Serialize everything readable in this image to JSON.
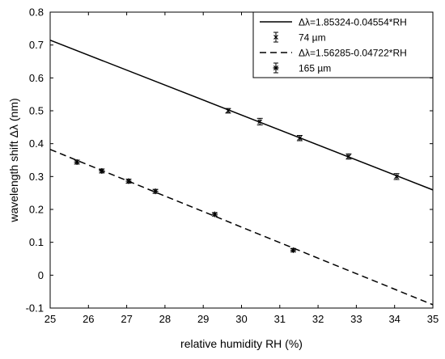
{
  "chart_data": {
    "type": "scatter",
    "xlabel": "relative humidity RH (%)",
    "ylabel": "wavelength shift Δλ (nm)",
    "xlim": [
      25,
      35
    ],
    "ylim": [
      -0.1,
      0.8
    ],
    "xticks": [
      25,
      26,
      27,
      28,
      29,
      30,
      31,
      32,
      33,
      34,
      35
    ],
    "yticks": [
      -0.1,
      0,
      0.1,
      0.2,
      0.3,
      0.4,
      0.5,
      0.6,
      0.7,
      0.8
    ],
    "ytick_labels": [
      "-0.1",
      "0",
      "0.1",
      "0.2",
      "0.3",
      "0.4",
      "0.5",
      "0.6",
      "0.7",
      "0.8"
    ],
    "grid": false,
    "legend_position": "top-right",
    "series": [
      {
        "name": "Δλ=1.85324-0.04554*RH",
        "kind": "fit-line",
        "line_style": "solid",
        "intercept": 1.85324,
        "slope": -0.04554,
        "x_range": [
          25,
          35
        ]
      },
      {
        "name": "74 µm",
        "kind": "errorbar",
        "marker": "x",
        "x": [
          29.65,
          30.48,
          31.52,
          32.8,
          34.05
        ],
        "y": [
          0.5,
          0.467,
          0.417,
          0.361,
          0.3
        ],
        "yerr": [
          0.007,
          0.01,
          0.008,
          0.008,
          0.009
        ]
      },
      {
        "name": "Δλ=1.56285-0.04722*RH",
        "kind": "fit-line",
        "line_style": "dashed",
        "intercept": 1.56285,
        "slope": -0.04722,
        "x_range": [
          25,
          35
        ]
      },
      {
        "name": "165 µm",
        "kind": "errorbar",
        "marker": "asterisk",
        "x": [
          25.7,
          26.35,
          27.05,
          27.75,
          29.3,
          31.35
        ],
        "y": [
          0.344,
          0.317,
          0.286,
          0.255,
          0.185,
          0.076
        ],
        "yerr": [
          0.006,
          0.006,
          0.006,
          0.006,
          0.005,
          0.005
        ]
      }
    ]
  }
}
